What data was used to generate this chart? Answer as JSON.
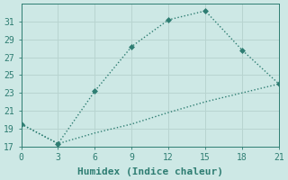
{
  "xlabel": "Humidex (Indice chaleur)",
  "line1_x": [
    0,
    3,
    6,
    9,
    12,
    15,
    18,
    21
  ],
  "line1_y": [
    19.5,
    17.3,
    23.2,
    28.2,
    31.2,
    32.2,
    27.8,
    24.0
  ],
  "line2_x": [
    0,
    3,
    6,
    9,
    12,
    15,
    18,
    21
  ],
  "line2_y": [
    19.5,
    17.3,
    18.5,
    19.5,
    20.8,
    22.0,
    23.0,
    24.0
  ],
  "line_color": "#2e7d72",
  "bg_color": "#cde8e5",
  "grid_color": "#b8d4d0",
  "axis_color": "#2e7d72",
  "xlim": [
    0,
    21
  ],
  "ylim": [
    17,
    33
  ],
  "xticks": [
    0,
    3,
    6,
    9,
    12,
    15,
    18,
    21
  ],
  "yticks": [
    17,
    19,
    21,
    23,
    25,
    27,
    29,
    31
  ],
  "marker": "D",
  "markersize": 3,
  "linewidth": 1.0,
  "fontsize_label": 8,
  "fontsize_tick": 7
}
